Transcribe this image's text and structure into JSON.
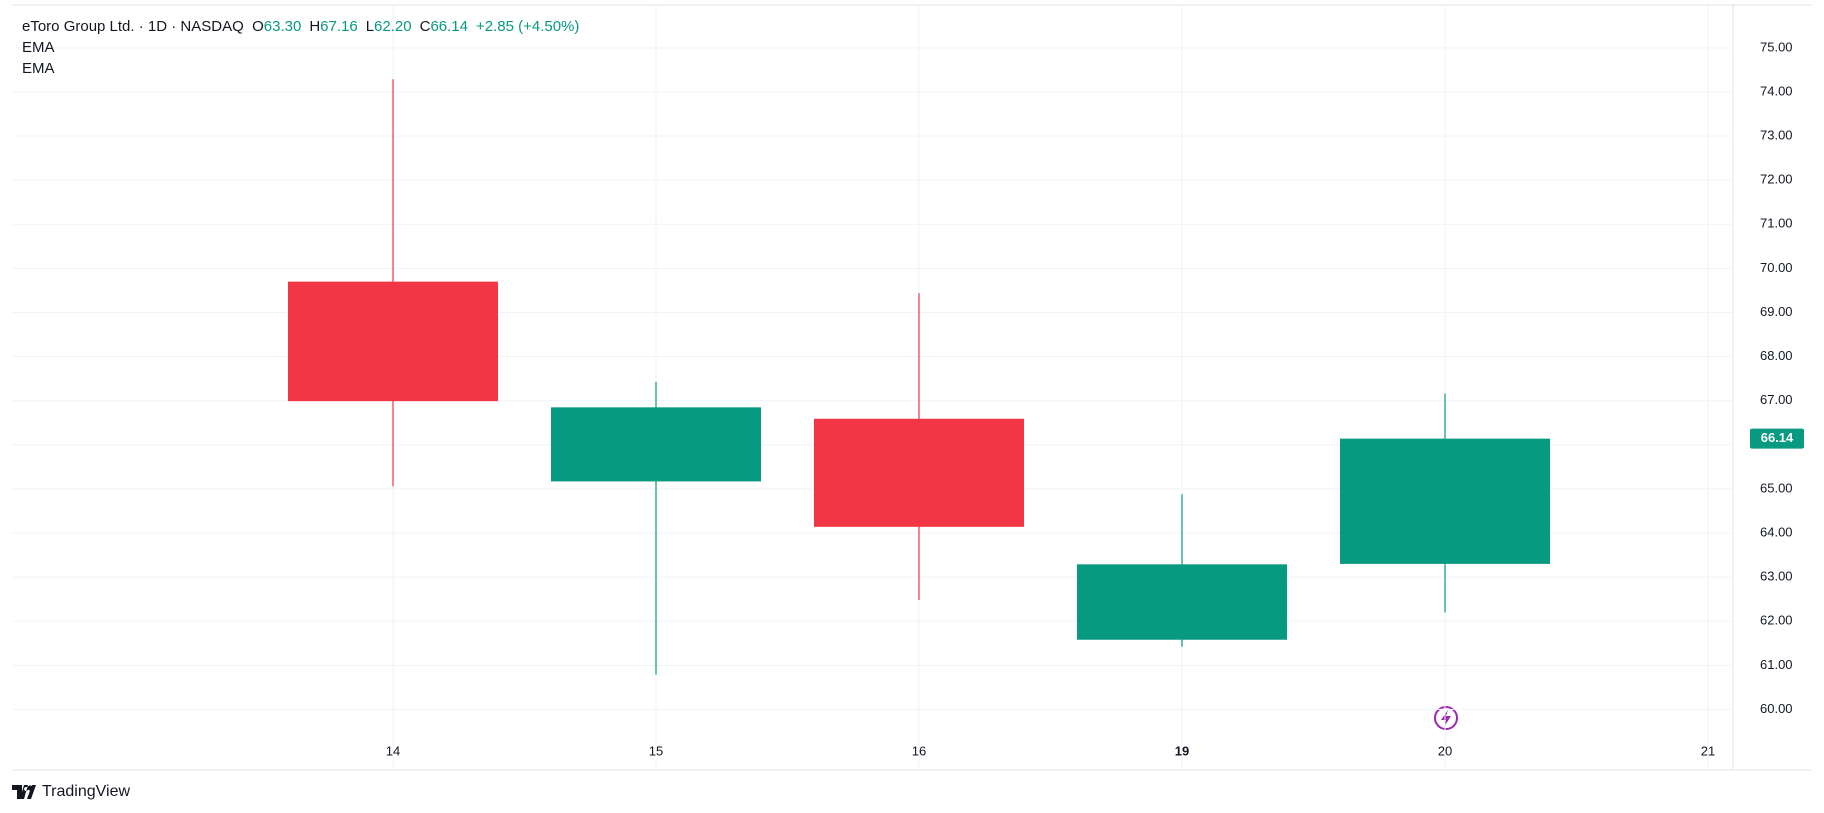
{
  "chart_data": {
    "type": "candlestick",
    "symbol": "eToro Group Ltd. · 1D · NASDAQ",
    "ohlc_legend": [
      {
        "key": "O",
        "value": "63.30"
      },
      {
        "key": "H",
        "value": "67.16"
      },
      {
        "key": "L",
        "value": "62.20"
      },
      {
        "key": "C",
        "value": "66.14"
      }
    ],
    "change": "+2.85 (+4.50%)",
    "indicators": [
      "EMA",
      "EMA"
    ],
    "categories": [
      "14",
      "15",
      "16",
      "19",
      "20",
      "21"
    ],
    "open": [
      69.7,
      65.17,
      66.59,
      61.58,
      63.3,
      null
    ],
    "high": [
      74.29,
      67.43,
      69.44,
      64.88,
      67.16,
      null
    ],
    "low": [
      65.06,
      60.79,
      62.48,
      61.42,
      62.2,
      null
    ],
    "close": [
      66.99,
      66.85,
      64.14,
      63.29,
      66.14,
      null
    ],
    "up_color": "#089981",
    "down_color": "#f23645",
    "ylim": [
      59.42,
      75.95
    ],
    "yticks": [
      {
        "value": 60,
        "label": "60.00"
      },
      {
        "value": 61,
        "label": "61.00"
      },
      {
        "value": 62,
        "label": "62.00"
      },
      {
        "value": 63,
        "label": "63.00"
      },
      {
        "value": 64,
        "label": "64.00"
      },
      {
        "value": 65,
        "label": "65.00"
      },
      {
        "value": 66,
        "label": "66.00"
      },
      {
        "value": 67,
        "label": "67.00"
      },
      {
        "value": 68,
        "label": "68.00"
      },
      {
        "value": 69,
        "label": "69.00"
      },
      {
        "value": 70,
        "label": "70.00"
      },
      {
        "value": 71,
        "label": "71.00"
      },
      {
        "value": 72,
        "label": "72.00"
      },
      {
        "value": 73,
        "label": "73.00"
      },
      {
        "value": 74,
        "label": "74.00"
      },
      {
        "value": 75,
        "label": "75.00"
      }
    ],
    "grid": true,
    "brand": "TradingView"
  }
}
